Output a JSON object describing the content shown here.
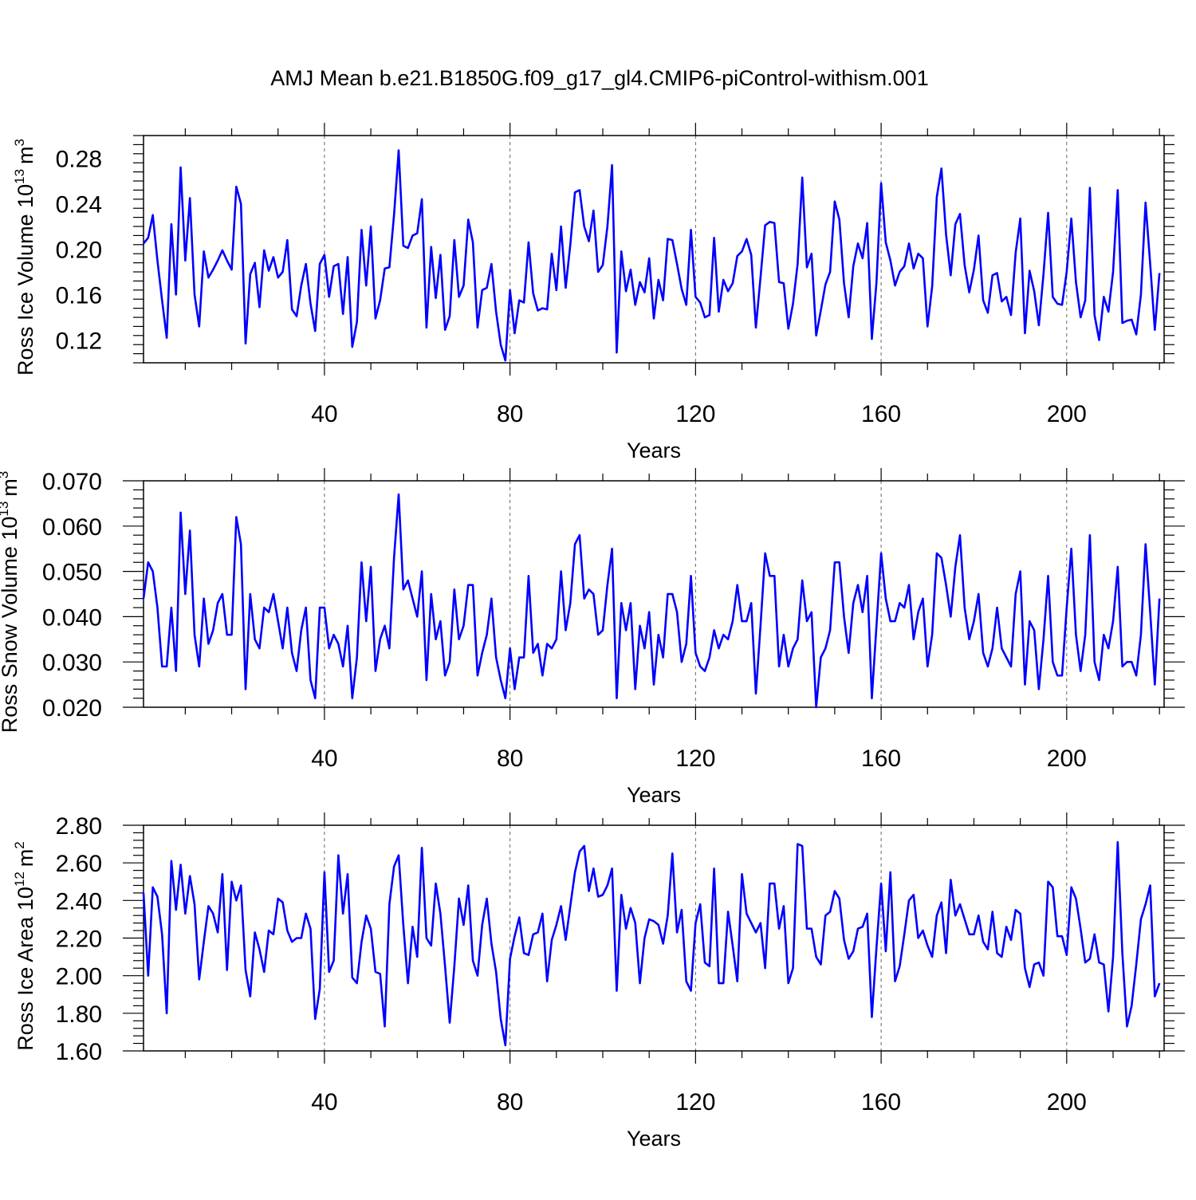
{
  "title": "AMJ Mean b.e21.B1850G.f09_g17_gl4.CMIP6-piControl-withism.001",
  "chart_data": [
    {
      "type": "line",
      "ylabel_main": "Ross Ice Volume 10",
      "ylabel_exp": "13",
      "ylabel_unit": "m",
      "ylabel_unit_exp": "3",
      "xlabel": "Years",
      "xlim": [
        1,
        221
      ],
      "ylim": [
        0.1,
        0.3
      ],
      "x_ticks": [
        40,
        80,
        120,
        160,
        200
      ],
      "x_tick_labels": [
        "40",
        "80",
        "120",
        "160",
        "200"
      ],
      "y_ticks": [
        0.12,
        0.16,
        0.2,
        0.24,
        0.28
      ],
      "y_tick_labels": [
        "0.12",
        "0.16",
        "0.20",
        "0.24",
        "0.28"
      ],
      "y_minor_step": 0.008,
      "grid": "dashed vertical at x ticks",
      "series": [
        {
          "color": "#0000ff",
          "values": [
            0.205,
            0.21,
            0.23,
            0.19,
            0.155,
            0.122,
            0.222,
            0.16,
            0.272,
            0.19,
            0.245,
            0.16,
            0.132,
            0.198,
            0.175,
            0.182,
            0.19,
            0.199,
            0.19,
            0.182,
            0.255,
            0.24,
            0.117,
            0.178,
            0.188,
            0.149,
            0.199,
            0.181,
            0.193,
            0.175,
            0.18,
            0.208,
            0.147,
            0.141,
            0.168,
            0.187,
            0.152,
            0.128,
            0.187,
            0.195,
            0.158,
            0.185,
            0.187,
            0.143,
            0.193,
            0.114,
            0.136,
            0.217,
            0.168,
            0.22,
            0.139,
            0.155,
            0.183,
            0.184,
            0.23,
            0.287,
            0.203,
            0.201,
            0.212,
            0.214,
            0.244,
            0.131,
            0.202,
            0.157,
            0.195,
            0.129,
            0.141,
            0.208,
            0.158,
            0.168,
            0.226,
            0.206,
            0.131,
            0.164,
            0.166,
            0.187,
            0.145,
            0.116,
            0.102,
            0.164,
            0.126,
            0.155,
            0.153,
            0.206,
            0.161,
            0.146,
            0.148,
            0.147,
            0.196,
            0.164,
            0.22,
            0.166,
            0.204,
            0.25,
            0.252,
            0.22,
            0.207,
            0.234,
            0.18,
            0.186,
            0.22,
            0.274,
            0.109,
            0.198,
            0.163,
            0.182,
            0.151,
            0.171,
            0.162,
            0.192,
            0.139,
            0.173,
            0.155,
            0.209,
            0.208,
            0.187,
            0.165,
            0.151,
            0.217,
            0.158,
            0.153,
            0.14,
            0.142,
            0.21,
            0.145,
            0.173,
            0.163,
            0.17,
            0.194,
            0.198,
            0.209,
            0.195,
            0.131,
            0.175,
            0.221,
            0.224,
            0.223,
            0.171,
            0.17,
            0.13,
            0.152,
            0.187,
            0.263,
            0.184,
            0.196,
            0.124,
            0.146,
            0.169,
            0.18,
            0.242,
            0.226,
            0.17,
            0.14,
            0.185,
            0.205,
            0.192,
            0.223,
            0.121,
            0.171,
            0.258,
            0.206,
            0.19,
            0.168,
            0.18,
            0.185,
            0.205,
            0.183,
            0.196,
            0.192,
            0.132,
            0.167,
            0.246,
            0.271,
            0.213,
            0.177,
            0.222,
            0.231,
            0.186,
            0.162,
            0.182,
            0.212,
            0.155,
            0.144,
            0.177,
            0.179,
            0.154,
            0.158,
            0.142,
            0.197,
            0.227,
            0.126,
            0.181,
            0.163,
            0.133,
            0.178,
            0.232,
            0.158,
            0.152,
            0.151,
            0.18,
            0.227,
            0.171,
            0.14,
            0.155,
            0.254,
            0.142,
            0.12,
            0.158,
            0.145,
            0.18,
            0.252,
            0.135,
            0.137,
            0.138,
            0.125,
            0.16,
            0.241,
            0.187,
            0.129,
            0.179
          ]
        }
      ]
    },
    {
      "type": "line",
      "ylabel_main": "Ross Snow Volume 10",
      "ylabel_exp": "13",
      "ylabel_unit": "m",
      "ylabel_unit_exp": "3",
      "xlabel": "Years",
      "xlim": [
        1,
        221
      ],
      "ylim": [
        0.02,
        0.07
      ],
      "x_ticks": [
        40,
        80,
        120,
        160,
        200
      ],
      "x_tick_labels": [
        "40",
        "80",
        "120",
        "160",
        "200"
      ],
      "y_ticks": [
        0.02,
        0.03,
        0.04,
        0.05,
        0.06,
        0.07
      ],
      "y_tick_labels": [
        "0.020",
        "0.030",
        "0.040",
        "0.050",
        "0.060",
        "0.070"
      ],
      "y_minor_step": 0.002,
      "grid": "dashed vertical at x ticks",
      "series": [
        {
          "color": "#0000ff",
          "values": [
            0.044,
            0.052,
            0.05,
            0.042,
            0.029,
            0.029,
            0.042,
            0.028,
            0.063,
            0.045,
            0.059,
            0.036,
            0.029,
            0.044,
            0.034,
            0.037,
            0.043,
            0.045,
            0.036,
            0.036,
            0.062,
            0.056,
            0.024,
            0.045,
            0.035,
            0.033,
            0.042,
            0.041,
            0.045,
            0.039,
            0.033,
            0.042,
            0.032,
            0.028,
            0.037,
            0.042,
            0.026,
            0.022,
            0.042,
            0.042,
            0.033,
            0.036,
            0.034,
            0.029,
            0.038,
            0.022,
            0.031,
            0.052,
            0.039,
            0.051,
            0.028,
            0.035,
            0.038,
            0.033,
            0.053,
            0.067,
            0.046,
            0.048,
            0.044,
            0.04,
            0.05,
            0.026,
            0.045,
            0.035,
            0.039,
            0.027,
            0.03,
            0.046,
            0.035,
            0.038,
            0.047,
            0.047,
            0.027,
            0.032,
            0.036,
            0.044,
            0.031,
            0.026,
            0.022,
            0.033,
            0.024,
            0.031,
            0.031,
            0.049,
            0.032,
            0.034,
            0.027,
            0.034,
            0.033,
            0.035,
            0.05,
            0.037,
            0.043,
            0.056,
            0.058,
            0.044,
            0.046,
            0.045,
            0.036,
            0.037,
            0.047,
            0.055,
            0.022,
            0.043,
            0.037,
            0.043,
            0.024,
            0.038,
            0.033,
            0.041,
            0.025,
            0.036,
            0.031,
            0.045,
            0.045,
            0.041,
            0.03,
            0.034,
            0.049,
            0.032,
            0.029,
            0.028,
            0.031,
            0.037,
            0.033,
            0.036,
            0.035,
            0.039,
            0.047,
            0.039,
            0.039,
            0.043,
            0.023,
            0.038,
            0.054,
            0.049,
            0.049,
            0.029,
            0.036,
            0.029,
            0.033,
            0.035,
            0.048,
            0.039,
            0.041,
            0.02,
            0.031,
            0.033,
            0.037,
            0.052,
            0.052,
            0.04,
            0.032,
            0.043,
            0.047,
            0.041,
            0.049,
            0.022,
            0.038,
            0.054,
            0.044,
            0.039,
            0.039,
            0.043,
            0.042,
            0.047,
            0.035,
            0.041,
            0.044,
            0.029,
            0.036,
            0.054,
            0.053,
            0.047,
            0.04,
            0.051,
            0.058,
            0.042,
            0.035,
            0.039,
            0.045,
            0.032,
            0.029,
            0.033,
            0.042,
            0.033,
            0.031,
            0.029,
            0.045,
            0.05,
            0.025,
            0.039,
            0.037,
            0.024,
            0.035,
            0.049,
            0.03,
            0.027,
            0.027,
            0.042,
            0.055,
            0.036,
            0.028,
            0.036,
            0.058,
            0.03,
            0.026,
            0.036,
            0.033,
            0.039,
            0.051,
            0.029,
            0.03,
            0.03,
            0.027,
            0.036,
            0.056,
            0.041,
            0.025,
            0.044
          ]
        }
      ]
    },
    {
      "type": "line",
      "ylabel_main": "Ross Ice Area 10",
      "ylabel_exp": "12",
      "ylabel_unit": "m",
      "ylabel_unit_exp": "2",
      "xlabel": "Years",
      "xlim": [
        1,
        221
      ],
      "ylim": [
        1.6,
        2.8
      ],
      "x_ticks": [
        40,
        80,
        120,
        160,
        200
      ],
      "x_tick_labels": [
        "40",
        "80",
        "120",
        "160",
        "200"
      ],
      "y_ticks": [
        1.6,
        1.8,
        2.0,
        2.2,
        2.4,
        2.6,
        2.8
      ],
      "y_tick_labels": [
        "1.60",
        "1.80",
        "2.00",
        "2.20",
        "2.40",
        "2.60",
        "2.80"
      ],
      "y_minor_step": 0.04,
      "grid": "dashed vertical at x ticks",
      "series": [
        {
          "color": "#0000ff",
          "values": [
            2.44,
            2.0,
            2.47,
            2.42,
            2.22,
            1.8,
            2.61,
            2.35,
            2.59,
            2.33,
            2.53,
            2.38,
            1.98,
            2.18,
            2.37,
            2.33,
            2.23,
            2.54,
            2.03,
            2.5,
            2.4,
            2.48,
            2.03,
            1.89,
            2.23,
            2.14,
            2.02,
            2.24,
            2.22,
            2.41,
            2.39,
            2.24,
            2.18,
            2.2,
            2.2,
            2.33,
            2.25,
            1.77,
            1.93,
            2.55,
            2.02,
            2.08,
            2.64,
            2.33,
            2.54,
            1.99,
            1.96,
            2.18,
            2.32,
            2.25,
            2.02,
            2.01,
            1.73,
            2.38,
            2.58,
            2.64,
            2.27,
            1.96,
            2.26,
            2.1,
            2.68,
            2.2,
            2.16,
            2.49,
            2.33,
            2.05,
            1.75,
            2.05,
            2.41,
            2.27,
            2.48,
            2.08,
            2.0,
            2.27,
            2.41,
            2.17,
            2.02,
            1.77,
            1.63,
            2.09,
            2.21,
            2.31,
            2.12,
            2.11,
            2.22,
            2.23,
            2.33,
            1.97,
            2.19,
            2.27,
            2.37,
            2.19,
            2.37,
            2.55,
            2.66,
            2.69,
            2.45,
            2.57,
            2.42,
            2.43,
            2.48,
            2.57,
            1.92,
            2.43,
            2.25,
            2.36,
            2.28,
            1.96,
            2.2,
            2.3,
            2.29,
            2.27,
            2.17,
            2.32,
            2.65,
            2.23,
            2.35,
            1.97,
            1.92,
            2.28,
            2.38,
            2.07,
            2.05,
            2.57,
            1.96,
            1.96,
            2.34,
            2.16,
            1.97,
            2.54,
            2.33,
            2.28,
            2.23,
            2.28,
            2.04,
            2.49,
            2.49,
            2.25,
            2.37,
            1.96,
            2.04,
            2.7,
            2.69,
            2.25,
            2.25,
            2.1,
            2.06,
            2.32,
            2.34,
            2.45,
            2.41,
            2.19,
            2.09,
            2.13,
            2.25,
            2.26,
            2.33,
            1.78,
            2.15,
            2.49,
            2.13,
            2.55,
            1.97,
            2.05,
            2.22,
            2.4,
            2.43,
            2.2,
            2.24,
            2.16,
            2.1,
            2.32,
            2.39,
            2.12,
            2.51,
            2.32,
            2.38,
            2.3,
            2.22,
            2.22,
            2.32,
            2.18,
            2.14,
            2.34,
            2.12,
            2.1,
            2.26,
            2.19,
            2.35,
            2.33,
            2.04,
            1.94,
            2.06,
            2.07,
            2.0,
            2.5,
            2.47,
            2.21,
            2.21,
            2.11,
            2.47,
            2.41,
            2.25,
            2.07,
            2.09,
            2.22,
            2.07,
            2.06,
            1.81,
            2.1,
            2.71,
            2.12,
            1.73,
            1.84,
            2.06,
            2.3,
            2.38,
            2.48,
            1.89,
            1.96
          ]
        }
      ]
    }
  ]
}
